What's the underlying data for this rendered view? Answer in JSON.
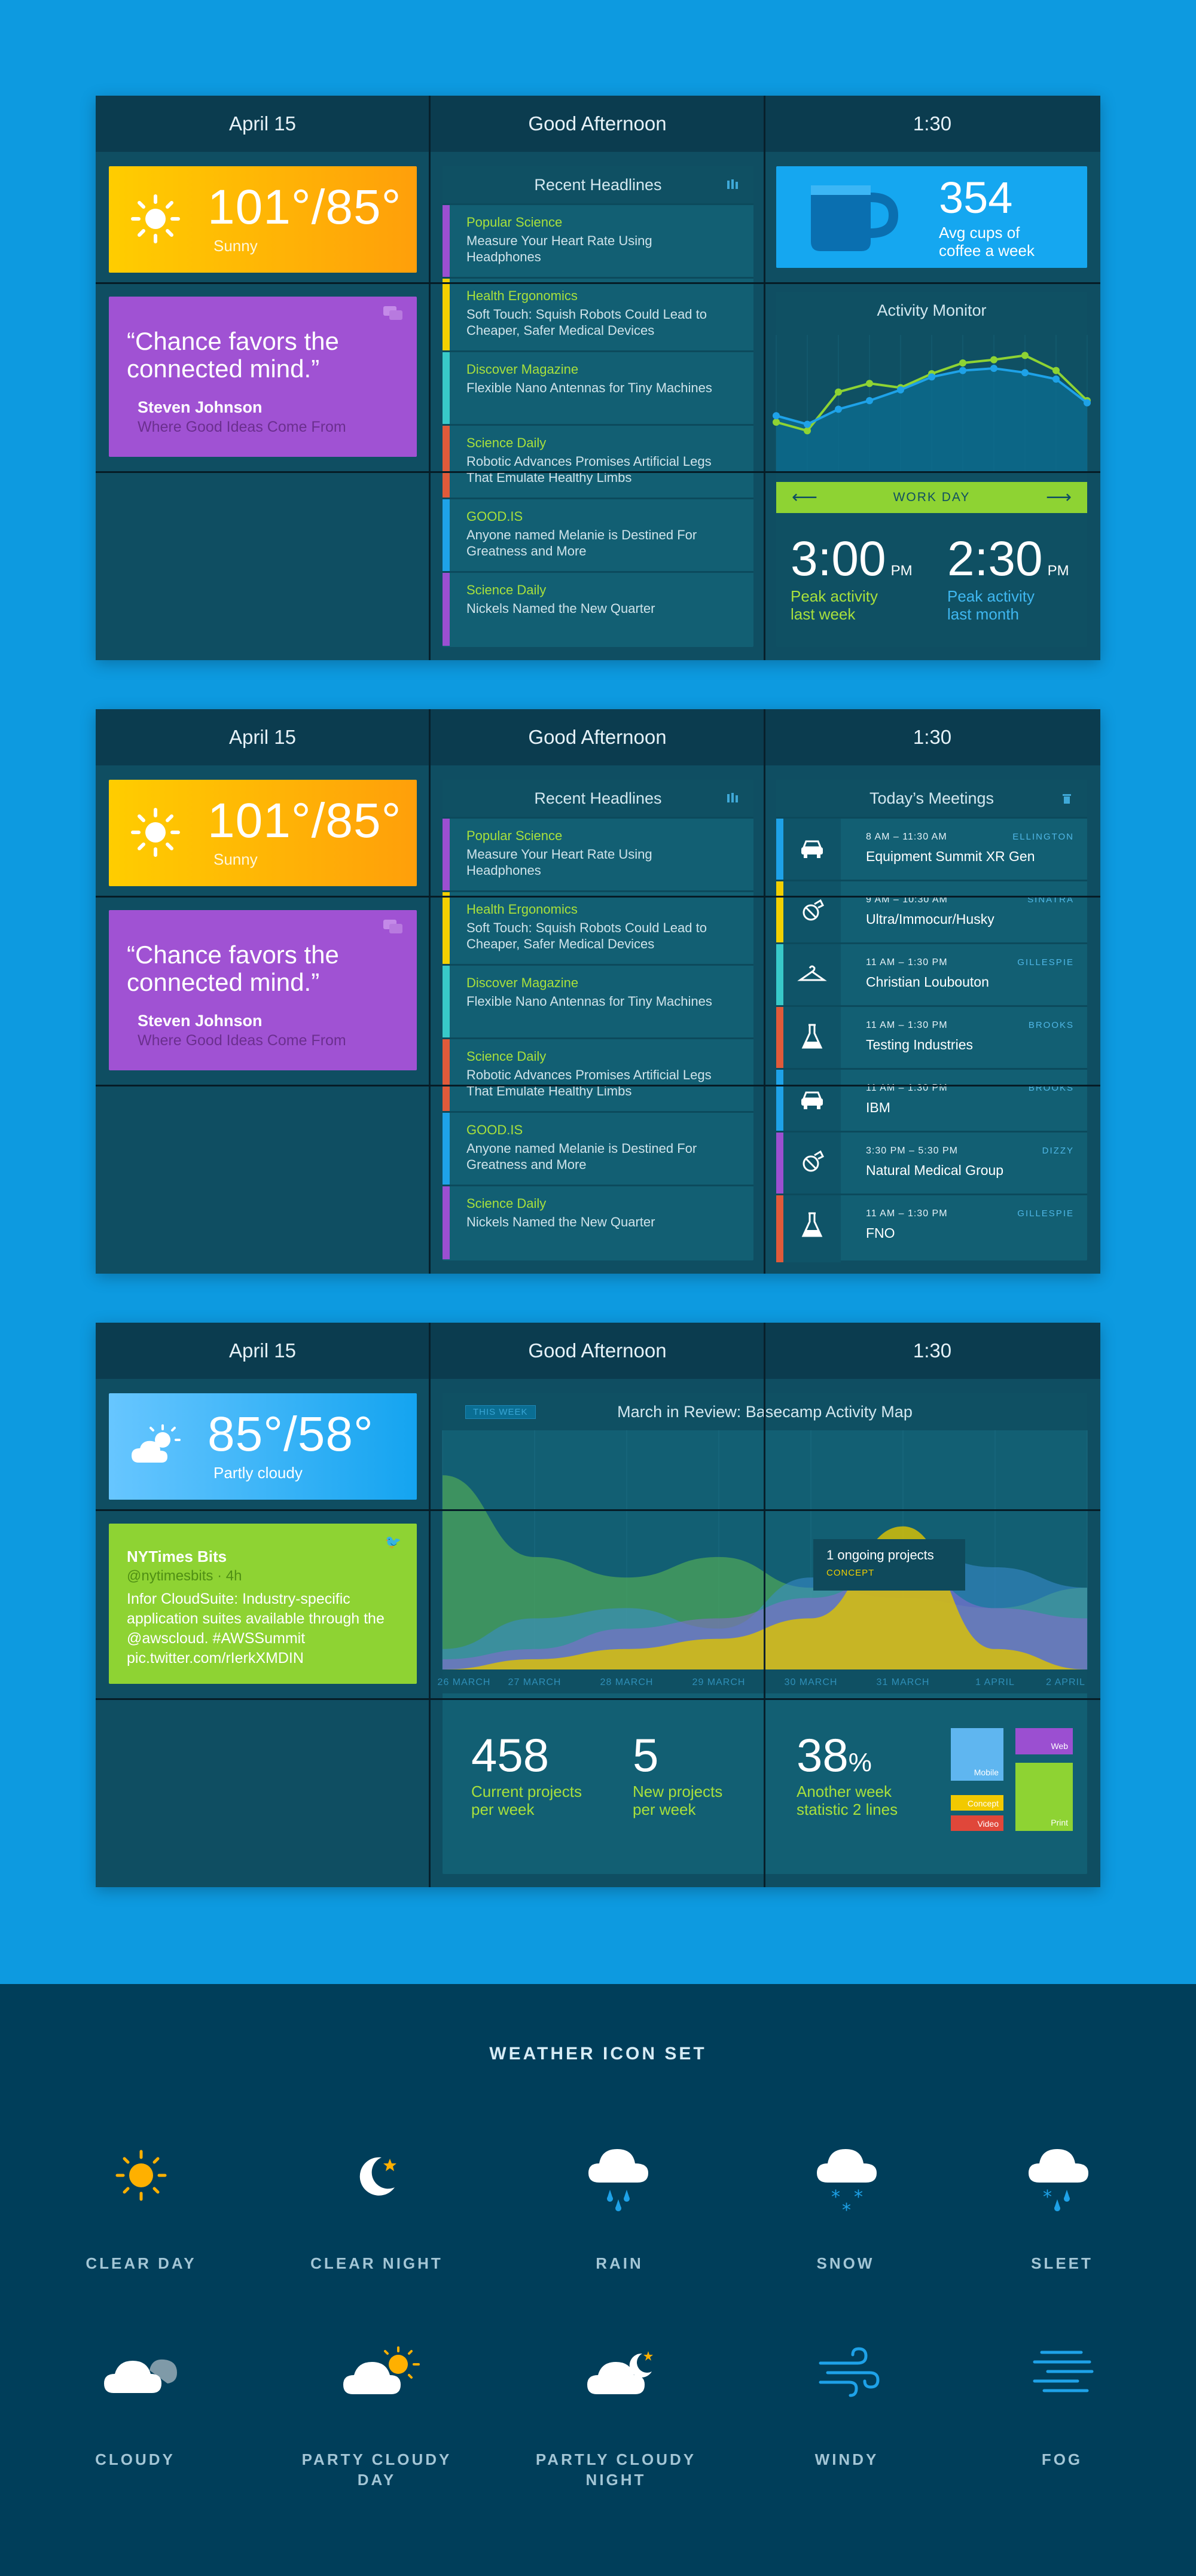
{
  "header": {
    "date": "April 15",
    "greeting": "Good Afternoon",
    "time": "1:30"
  },
  "weather1": {
    "high": "101",
    "low": "85",
    "condition": "Sunny",
    "icon": "sun-icon"
  },
  "weather3": {
    "high": "85",
    "low": "58",
    "condition": "Partly cloudy",
    "icon": "partly-cloudy-icon"
  },
  "quote": {
    "text": "“Chance favors the connected mind.”",
    "author": "Steven Johnson",
    "book": "Where Good Ideas Come From"
  },
  "headlines": {
    "title": "Recent Headlines",
    "items": [
      {
        "source": "Popular Science",
        "title": "Measure Your Heart Rate Using Headphones",
        "color": "#9b4fd1"
      },
      {
        "source": "Health Ergonomics",
        "title": "Soft Touch: Squish Robots Could Lead to Cheaper, Safer Medical Devices",
        "color": "#f2d000"
      },
      {
        "source": "Discover Magazine",
        "title": "Flexible Nano Antennas for Tiny Machines",
        "color": "#38c9c9"
      },
      {
        "source": "Science Daily",
        "title": "Robotic Advances Promises Artificial Legs That Emulate Healthy Limbs",
        "color": "#e05a3a"
      },
      {
        "source": "GOOD.IS",
        "title": "Anyone named Melanie is Destined For Greatness and More",
        "color": "#1ea2e8"
      },
      {
        "source": "Science Daily",
        "title": "Nickels Named the New Quarter",
        "color": "#9b4fd1"
      }
    ]
  },
  "coffee": {
    "value": "354",
    "label1": "Avg cups of",
    "label2": "coffee a week"
  },
  "activity": {
    "title": "Activity Monitor",
    "nav_label": "WORK DAY",
    "stat1_time": "3:00",
    "stat1_ampm": "PM",
    "stat1_label1": "Peak activity",
    "stat1_label2": "last week",
    "stat2_time": "2:30",
    "stat2_ampm": "PM",
    "stat2_label1": "Peak activity",
    "stat2_label2": "last month"
  },
  "chart_data": [
    {
      "type": "line",
      "title": "Activity Monitor",
      "x": [
        1,
        2,
        3,
        4,
        5,
        6,
        7,
        8,
        9,
        10,
        11
      ],
      "series": [
        {
          "values": [
            30,
            22,
            58,
            66,
            62,
            75,
            85,
            88,
            92,
            78,
            50
          ]
        },
        {
          "values": [
            36,
            28,
            42,
            50,
            60,
            72,
            78,
            80,
            76,
            70,
            48
          ]
        }
      ]
    },
    {
      "type": "area",
      "title": "March in Review: Basecamp Activity Map",
      "categories": [
        "26 MARCH",
        "27 MARCH",
        "28 MARCH",
        "29 MARCH",
        "30 MARCH",
        "31 MARCH",
        "1 APRIL",
        "2 APRIL"
      ],
      "series": [
        {
          "values": [
            95,
            55,
            45,
            55,
            40,
            35,
            30,
            40
          ]
        },
        {
          "values": [
            10,
            25,
            30,
            20,
            45,
            60,
            50,
            40
          ]
        },
        {
          "values": [
            5,
            10,
            20,
            25,
            35,
            50,
            30,
            25
          ]
        },
        {
          "values": [
            0,
            5,
            10,
            15,
            25,
            70,
            10,
            0
          ]
        }
      ]
    }
  ],
  "meetings": {
    "title": "Today’s Meetings",
    "items": [
      {
        "time": "8 AM – 11:30 AM",
        "name": "Equipment Summit XR Gen",
        "loc": "ELLINGTON",
        "icon": "car-icon",
        "color": "#1ea2e8"
      },
      {
        "time": "9 AM – 10:30 AM",
        "name": "Ultra/Immocur/Husky",
        "loc": "SINATRA",
        "icon": "pill-icon",
        "color": "#f2d000"
      },
      {
        "time": "11 AM – 1:30 PM",
        "name": "Christian Loubouton",
        "loc": "GILLESPIE",
        "icon": "hanger-icon",
        "color": "#38c9c9"
      },
      {
        "time": "11 AM – 1:30 PM",
        "name": "Testing Industries",
        "loc": "BROOKS",
        "icon": "flask-icon",
        "color": "#e05a3a"
      },
      {
        "time": "11 AM – 1:30 PM",
        "name": "IBM",
        "loc": "BROOKS",
        "icon": "car-icon",
        "color": "#1ea2e8"
      },
      {
        "time": "3:30 PM – 5:30 PM",
        "name": "Natural Medical Group",
        "loc": "DIZZY",
        "icon": "pill-icon",
        "color": "#9b4fd1"
      },
      {
        "time": "11 AM – 1:30 PM",
        "name": "FNO",
        "loc": "GILLESPIE",
        "icon": "flask-icon",
        "color": "#e05a3a"
      }
    ]
  },
  "tweet": {
    "account": "NYTimes Bits",
    "handle": "@nytimesbits",
    "age": "4h",
    "text": "Infor CloudSuite: Industry-specific application suites available through the @awscloud. #AWSSummit pic.twitter.com/rIerkXMDIN"
  },
  "map": {
    "tag": "THIS WEEK",
    "title": "March in Review: Basecamp Activity Map",
    "tooltip_title": "1 ongoing projects",
    "tooltip_tag": "CONCEPT",
    "stat1_value": "458",
    "stat1_label1": "Current projects",
    "stat1_label2": "per week",
    "stat2_value": "5",
    "stat2_label1": "New projects",
    "stat2_label2": "per week",
    "stat3_value": "38",
    "stat3_unit": "%",
    "stat3_label1": "Another week",
    "stat3_label2": "statistic 2 lines",
    "legend": {
      "mobile": "Mobile",
      "web": "Web",
      "concept": "Concept",
      "video": "Video",
      "print": "Print"
    }
  },
  "icon_set": {
    "title": "WEATHER ICON SET",
    "items": [
      {
        "label": "CLEAR DAY",
        "icon": "clear-day-icon"
      },
      {
        "label": "CLEAR NIGHT",
        "icon": "clear-night-icon"
      },
      {
        "label": "RAIN",
        "icon": "rain-icon"
      },
      {
        "label": "SNOW",
        "icon": "snow-icon"
      },
      {
        "label": "SLEET",
        "icon": "sleet-icon"
      },
      {
        "label": "CLOUDY",
        "icon": "cloudy-icon"
      },
      {
        "label": "PARTY CLOUDY",
        "label2": "DAY",
        "icon": "partly-cloudy-day-icon"
      },
      {
        "label": "PARTLY CLOUDY",
        "label2": "NIGHT",
        "icon": "partly-cloudy-night-icon"
      },
      {
        "label": "WINDY",
        "icon": "windy-icon"
      },
      {
        "label": "FOG",
        "icon": "fog-icon"
      }
    ]
  }
}
